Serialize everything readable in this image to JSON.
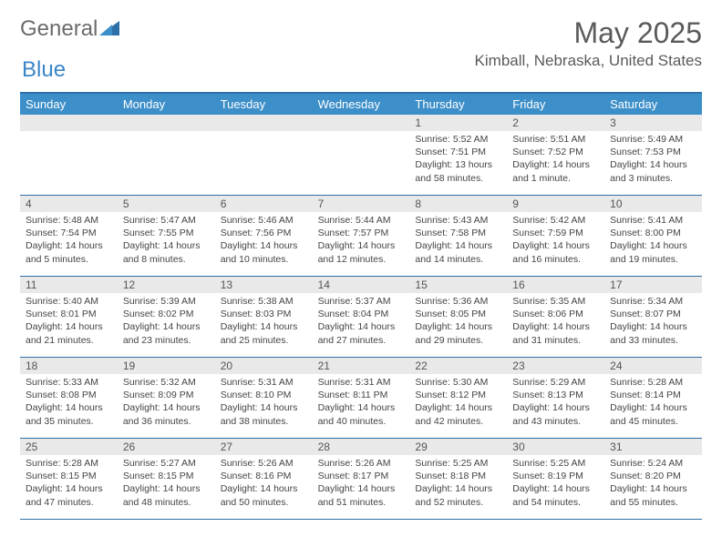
{
  "logo": {
    "text1": "General",
    "text2": "Blue"
  },
  "title": "May 2025",
  "location": "Kimball, Nebraska, United States",
  "daysOfWeek": [
    "Sunday",
    "Monday",
    "Tuesday",
    "Wednesday",
    "Thursday",
    "Friday",
    "Saturday"
  ],
  "colors": {
    "headerBg": "#3d8fc9",
    "headerText": "#ffffff",
    "borderBlue": "#2f6fa8",
    "dayNumBg": "#e9e9e9",
    "bodyText": "#444444",
    "titleText": "#5a5a5a"
  },
  "weeks": [
    [
      null,
      null,
      null,
      null,
      {
        "n": "1",
        "sunrise": "5:52 AM",
        "sunset": "7:51 PM",
        "daylight": "13 hours and 58 minutes."
      },
      {
        "n": "2",
        "sunrise": "5:51 AM",
        "sunset": "7:52 PM",
        "daylight": "14 hours and 1 minute."
      },
      {
        "n": "3",
        "sunrise": "5:49 AM",
        "sunset": "7:53 PM",
        "daylight": "14 hours and 3 minutes."
      }
    ],
    [
      {
        "n": "4",
        "sunrise": "5:48 AM",
        "sunset": "7:54 PM",
        "daylight": "14 hours and 5 minutes."
      },
      {
        "n": "5",
        "sunrise": "5:47 AM",
        "sunset": "7:55 PM",
        "daylight": "14 hours and 8 minutes."
      },
      {
        "n": "6",
        "sunrise": "5:46 AM",
        "sunset": "7:56 PM",
        "daylight": "14 hours and 10 minutes."
      },
      {
        "n": "7",
        "sunrise": "5:44 AM",
        "sunset": "7:57 PM",
        "daylight": "14 hours and 12 minutes."
      },
      {
        "n": "8",
        "sunrise": "5:43 AM",
        "sunset": "7:58 PM",
        "daylight": "14 hours and 14 minutes."
      },
      {
        "n": "9",
        "sunrise": "5:42 AM",
        "sunset": "7:59 PM",
        "daylight": "14 hours and 16 minutes."
      },
      {
        "n": "10",
        "sunrise": "5:41 AM",
        "sunset": "8:00 PM",
        "daylight": "14 hours and 19 minutes."
      }
    ],
    [
      {
        "n": "11",
        "sunrise": "5:40 AM",
        "sunset": "8:01 PM",
        "daylight": "14 hours and 21 minutes."
      },
      {
        "n": "12",
        "sunrise": "5:39 AM",
        "sunset": "8:02 PM",
        "daylight": "14 hours and 23 minutes."
      },
      {
        "n": "13",
        "sunrise": "5:38 AM",
        "sunset": "8:03 PM",
        "daylight": "14 hours and 25 minutes."
      },
      {
        "n": "14",
        "sunrise": "5:37 AM",
        "sunset": "8:04 PM",
        "daylight": "14 hours and 27 minutes."
      },
      {
        "n": "15",
        "sunrise": "5:36 AM",
        "sunset": "8:05 PM",
        "daylight": "14 hours and 29 minutes."
      },
      {
        "n": "16",
        "sunrise": "5:35 AM",
        "sunset": "8:06 PM",
        "daylight": "14 hours and 31 minutes."
      },
      {
        "n": "17",
        "sunrise": "5:34 AM",
        "sunset": "8:07 PM",
        "daylight": "14 hours and 33 minutes."
      }
    ],
    [
      {
        "n": "18",
        "sunrise": "5:33 AM",
        "sunset": "8:08 PM",
        "daylight": "14 hours and 35 minutes."
      },
      {
        "n": "19",
        "sunrise": "5:32 AM",
        "sunset": "8:09 PM",
        "daylight": "14 hours and 36 minutes."
      },
      {
        "n": "20",
        "sunrise": "5:31 AM",
        "sunset": "8:10 PM",
        "daylight": "14 hours and 38 minutes."
      },
      {
        "n": "21",
        "sunrise": "5:31 AM",
        "sunset": "8:11 PM",
        "daylight": "14 hours and 40 minutes."
      },
      {
        "n": "22",
        "sunrise": "5:30 AM",
        "sunset": "8:12 PM",
        "daylight": "14 hours and 42 minutes."
      },
      {
        "n": "23",
        "sunrise": "5:29 AM",
        "sunset": "8:13 PM",
        "daylight": "14 hours and 43 minutes."
      },
      {
        "n": "24",
        "sunrise": "5:28 AM",
        "sunset": "8:14 PM",
        "daylight": "14 hours and 45 minutes."
      }
    ],
    [
      {
        "n": "25",
        "sunrise": "5:28 AM",
        "sunset": "8:15 PM",
        "daylight": "14 hours and 47 minutes."
      },
      {
        "n": "26",
        "sunrise": "5:27 AM",
        "sunset": "8:15 PM",
        "daylight": "14 hours and 48 minutes."
      },
      {
        "n": "27",
        "sunrise": "5:26 AM",
        "sunset": "8:16 PM",
        "daylight": "14 hours and 50 minutes."
      },
      {
        "n": "28",
        "sunrise": "5:26 AM",
        "sunset": "8:17 PM",
        "daylight": "14 hours and 51 minutes."
      },
      {
        "n": "29",
        "sunrise": "5:25 AM",
        "sunset": "8:18 PM",
        "daylight": "14 hours and 52 minutes."
      },
      {
        "n": "30",
        "sunrise": "5:25 AM",
        "sunset": "8:19 PM",
        "daylight": "14 hours and 54 minutes."
      },
      {
        "n": "31",
        "sunrise": "5:24 AM",
        "sunset": "8:20 PM",
        "daylight": "14 hours and 55 minutes."
      }
    ]
  ],
  "labels": {
    "sunrise": "Sunrise: ",
    "sunset": "Sunset: ",
    "daylight": "Daylight: "
  }
}
